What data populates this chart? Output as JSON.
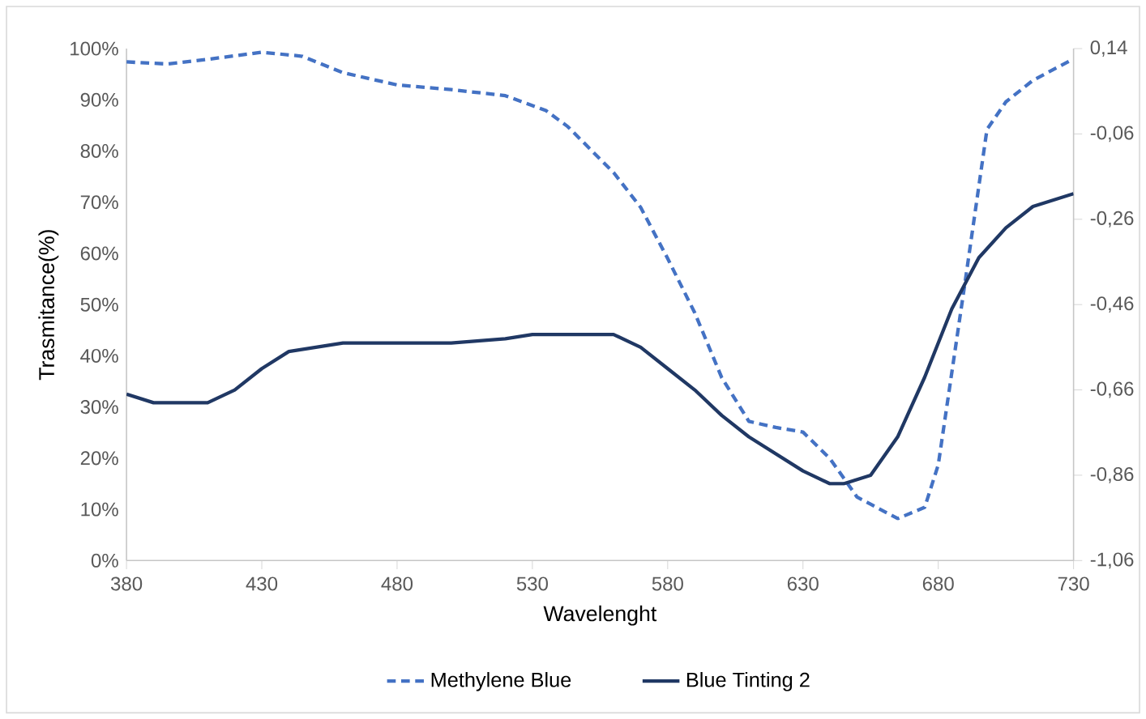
{
  "chart_data": {
    "type": "line",
    "xlabel": "Wavelenght",
    "ylabel": "Trasmitance(%)",
    "xlim": [
      380,
      730
    ],
    "xticks": [
      380,
      430,
      480,
      530,
      580,
      630,
      680,
      730
    ],
    "ylim": [
      0,
      100
    ],
    "yticks": [
      {
        "value": 0,
        "label": "0%"
      },
      {
        "value": 10,
        "label": "10%"
      },
      {
        "value": 20,
        "label": "20%"
      },
      {
        "value": 30,
        "label": "30%"
      },
      {
        "value": 40,
        "label": "40%"
      },
      {
        "value": 50,
        "label": "50%"
      },
      {
        "value": 60,
        "label": "60%"
      },
      {
        "value": 70,
        "label": "70%"
      },
      {
        "value": 80,
        "label": "80%"
      },
      {
        "value": 90,
        "label": "90%"
      },
      {
        "value": 100,
        "label": "100%"
      }
    ],
    "y2lim": [
      -1.06,
      0.14
    ],
    "y2ticks": [
      {
        "value": -1.06,
        "label": "-1,06"
      },
      {
        "value": -0.86,
        "label": "-0,86"
      },
      {
        "value": -0.66,
        "label": "-0,66"
      },
      {
        "value": -0.46,
        "label": "-0,46"
      },
      {
        "value": -0.26,
        "label": "-0,26"
      },
      {
        "value": -0.06,
        "label": "-0,06"
      },
      {
        "value": 0.14,
        "label": "0,14"
      }
    ],
    "legend": "bottom",
    "grid": false,
    "marker": "none",
    "series": [
      {
        "name": "Methylene Blue",
        "color": "#4472c4",
        "line_style": "dashed",
        "x": [
          380,
          395,
          410,
          430,
          445,
          460,
          480,
          500,
          520,
          535,
          543,
          560,
          570,
          580,
          590,
          600,
          610,
          620,
          630,
          640,
          650,
          665,
          675,
          680,
          690,
          698,
          705,
          715,
          730
        ],
        "values": [
          97.4,
          97,
          97.9,
          99.3,
          98.5,
          95.3,
          92.9,
          92,
          90.8,
          87.9,
          84.8,
          75.8,
          69,
          59,
          48.4,
          35.7,
          27.2,
          26,
          25.1,
          19.9,
          12.4,
          8.2,
          10.4,
          18.7,
          54.7,
          84.2,
          89.6,
          93.8,
          98
        ]
      },
      {
        "name": "Blue Tinting 2",
        "color": "#203864",
        "line_style": "solid",
        "axis": "y2",
        "x": [
          380,
          390,
          400,
          410,
          420,
          430,
          440,
          450,
          460,
          480,
          500,
          520,
          530,
          540,
          555,
          560,
          570,
          580,
          590,
          600,
          610,
          620,
          630,
          640,
          645,
          655,
          665,
          675,
          685,
          695,
          705,
          715,
          730
        ],
        "values": [
          -0.67,
          -0.69,
          -0.69,
          -0.69,
          -0.66,
          -0.61,
          -0.57,
          -0.56,
          -0.55,
          -0.55,
          -0.55,
          -0.54,
          -0.53,
          -0.53,
          -0.53,
          -0.53,
          -0.56,
          -0.61,
          -0.66,
          -0.72,
          -0.77,
          -0.81,
          -0.85,
          -0.88,
          -0.88,
          -0.86,
          -0.77,
          -0.63,
          -0.47,
          -0.35,
          -0.28,
          -0.23,
          -0.2
        ]
      }
    ]
  }
}
